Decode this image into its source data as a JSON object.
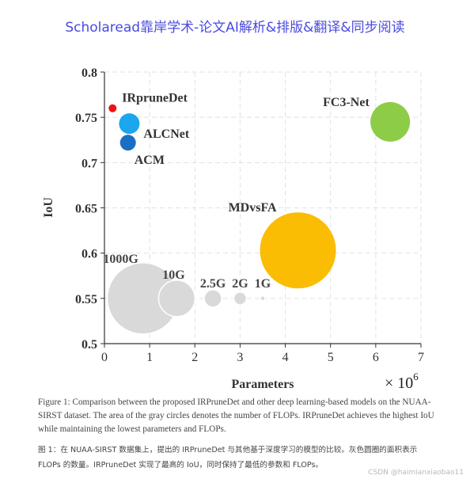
{
  "banner": "Scholaread靠岸学术-论文AI解析&排版&翻译&同步阅读",
  "chart_data": {
    "type": "scatter",
    "xlabel": "Parameters",
    "ylabel": "IoU",
    "x_multiplier_label": "× 10",
    "x_multiplier_exp": "6",
    "xlim": [
      0,
      7
    ],
    "ylim": [
      0.5,
      0.8
    ],
    "xticks": [
      "0",
      "1",
      "2",
      "3",
      "4",
      "5",
      "6",
      "7"
    ],
    "yticks": [
      "0.5",
      "0.55",
      "0.6",
      "0.65",
      "0.7",
      "0.75",
      "0.8"
    ],
    "grid": true,
    "points": [
      {
        "label": "IRpruneDet",
        "x": 0.18,
        "y": 0.76,
        "r": 5,
        "color": "#ee1111"
      },
      {
        "label": "ALCNet",
        "x": 0.55,
        "y": 0.743,
        "r": 13,
        "color": "#1ba6ee"
      },
      {
        "label": "ACM",
        "x": 0.52,
        "y": 0.722,
        "r": 10,
        "color": "#1a6fc4"
      },
      {
        "label": "FC3-Net",
        "x": 6.32,
        "y": 0.745,
        "r": 25,
        "color": "#8ccc47"
      },
      {
        "label": "MDvsFA",
        "x": 4.28,
        "y": 0.603,
        "r": 48,
        "color": "#fbbc04"
      }
    ],
    "flops_reference": [
      {
        "label": "1000G",
        "x": 0.85,
        "y": 0.55,
        "r": 45,
        "color": "#d9d9d9"
      },
      {
        "label": "10G",
        "x": 1.6,
        "y": 0.55,
        "r": 23,
        "color": "#d9d9d9"
      },
      {
        "label": "2.5G",
        "x": 2.4,
        "y": 0.55,
        "r": 11,
        "color": "#d9d9d9"
      },
      {
        "label": "2G",
        "x": 3.0,
        "y": 0.55,
        "r": 8,
        "color": "#d9d9d9"
      },
      {
        "label": "1G",
        "x": 3.5,
        "y": 0.55,
        "r": 3,
        "color": "#d9d9d9"
      }
    ]
  },
  "caption_en": "Figure 1: Comparison between the proposed IRPruneDet and other deep learning-based models on the NUAA-SIRST dataset. The area of the gray circles denotes the number of FLOPs. IRPruneDet achieves the highest IoU while maintaining the lowest parameters and FLOPs.",
  "caption_cn": "图 1：在 NUAA-SIRST 数据集上，提出的 IRPruneDet 与其他基于深度学习的模型的比较。灰色圆圈的面积表示 FLOPs 的数量。IRPruneDet 实现了最高的 IoU，同时保持了最低的参数和 FLOPs。",
  "watermark": "CSDN @haimianxiaobao11"
}
